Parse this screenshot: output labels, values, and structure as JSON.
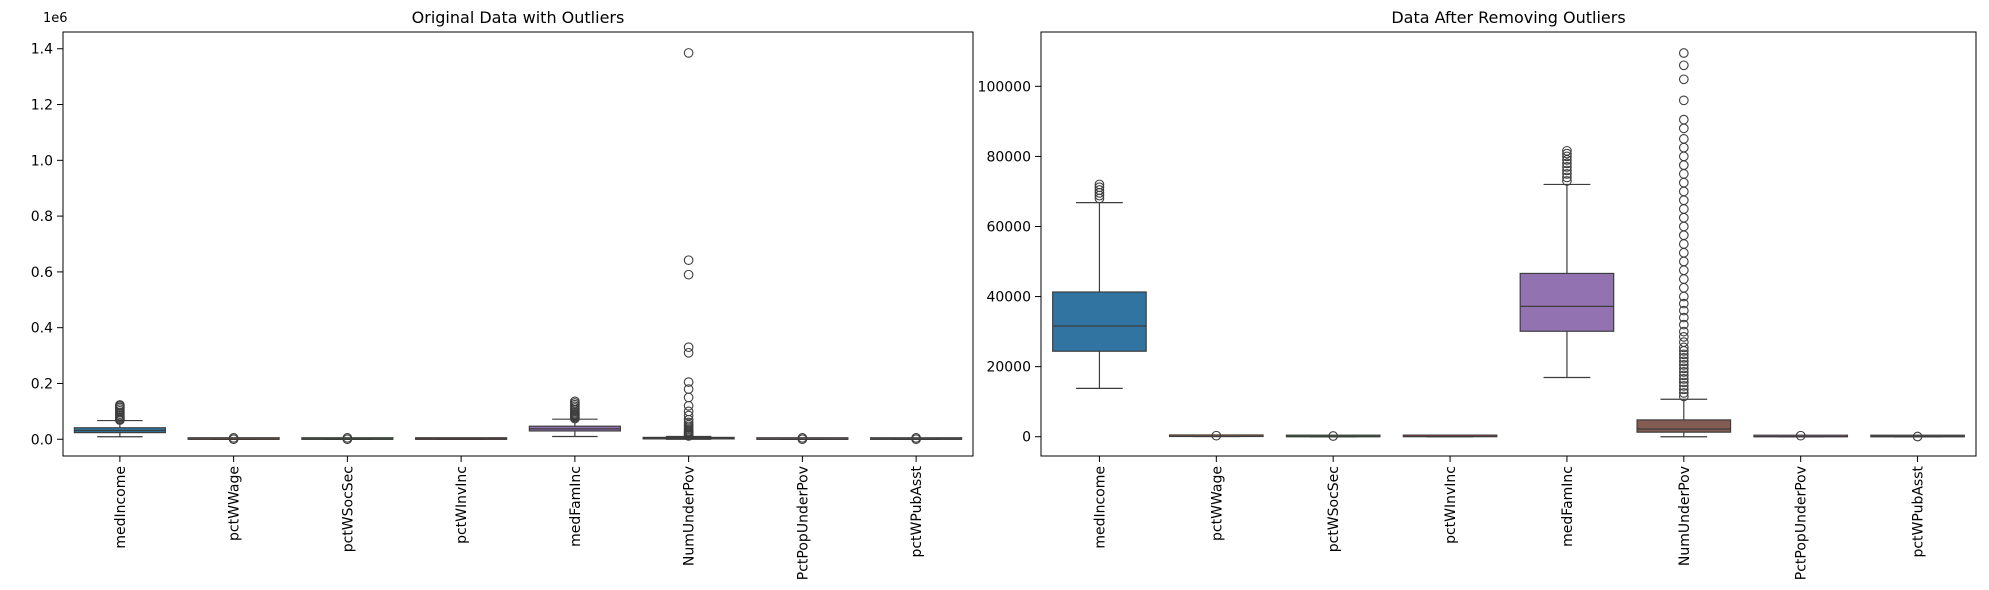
{
  "chart_data": [
    {
      "type": "boxplot",
      "title": "Original Data with Outliers",
      "scale_label": "1e6",
      "ylim": [
        -60000,
        1460000
      ],
      "yticks": [
        0,
        200000,
        400000,
        600000,
        800000,
        1000000,
        1200000,
        1400000
      ],
      "ytick_labels": [
        "0.0",
        "0.2",
        "0.4",
        "0.6",
        "0.8",
        "1.0",
        "1.2",
        "1.4"
      ],
      "categories": [
        "medIncome",
        "pctWWage",
        "pctWSocSec",
        "pctWInvInc",
        "medFamInc",
        "NumUnderPov",
        "PctPopUnderPov",
        "pctWPubAsst"
      ],
      "colors": [
        "#3274a1",
        "#e1812c",
        "#3a923a",
        "#c03d3e",
        "#9372b2",
        "#845b53",
        "#d684bd",
        "#7f7f7f"
      ],
      "boxes": [
        {
          "q1": 23800,
          "median": 31500,
          "q3": 41200,
          "whisker_low": 8900,
          "whisker_high": 67000,
          "outliers": [
            69000,
            72000,
            76000,
            80000,
            85000,
            90000,
            96000,
            102000,
            108000,
            114000,
            119000,
            123000
          ]
        },
        {
          "q1": 70,
          "median": 80,
          "q3": 88,
          "whisker_low": 45,
          "whisker_high": 100,
          "outliers": [
            30,
            5000
          ]
        },
        {
          "q1": 18,
          "median": 24,
          "q3": 32,
          "whisker_low": 0,
          "whisker_high": 52,
          "outliers": [
            60,
            5000
          ]
        },
        {
          "q1": 30,
          "median": 40,
          "q3": 55,
          "whisker_low": 0,
          "whisker_high": 90,
          "outliers": []
        },
        {
          "q1": 29800,
          "median": 37200,
          "q3": 46800,
          "whisker_low": 10000,
          "whisker_high": 72000,
          "outliers": [
            74000,
            78000,
            82000,
            86000,
            90000,
            95000,
            100000,
            106000,
            112000,
            118000,
            124000,
            130000,
            136000
          ]
        },
        {
          "q1": 1300,
          "median": 2200,
          "q3": 4800,
          "whisker_low": 0,
          "whisker_high": 10000,
          "outliers": [
            12000,
            15000,
            18000,
            22000,
            26000,
            30000,
            35000,
            40000,
            46000,
            52000,
            60000,
            70000,
            85000,
            100000,
            120000,
            150000,
            180000,
            205000,
            310000,
            330000,
            590000,
            642000,
            1385000
          ]
        },
        {
          "q1": 5,
          "median": 10,
          "q3": 17,
          "whisker_low": 0,
          "whisker_high": 35,
          "outliers": [
            38,
            5000
          ]
        },
        {
          "q1": 3,
          "median": 5,
          "q3": 9,
          "whisker_low": 0,
          "whisker_high": 18,
          "outliers": [
            20,
            5000
          ]
        }
      ]
    },
    {
      "type": "boxplot",
      "title": "Data After Removing Outliers",
      "ylim": [
        -5500,
        115500
      ],
      "yticks": [
        0,
        20000,
        40000,
        60000,
        80000,
        100000
      ],
      "ytick_labels": [
        "0",
        "20000",
        "40000",
        "60000",
        "80000",
        "100000"
      ],
      "categories": [
        "medIncome",
        "pctWWage",
        "pctWSocSec",
        "pctWInvInc",
        "medFamInc",
        "NumUnderPov",
        "PctPopUnderPov",
        "pctWPubAsst"
      ],
      "colors": [
        "#3274a1",
        "#e1812c",
        "#3a923a",
        "#c03d3e",
        "#9372b2",
        "#845b53",
        "#d684bd",
        "#7f7f7f"
      ],
      "boxes": [
        {
          "q1": 24400,
          "median": 31600,
          "q3": 41300,
          "whisker_low": 13800,
          "whisker_high": 66800,
          "outliers": [
            68000,
            68800,
            69600,
            70400,
            71200,
            72000
          ]
        },
        {
          "q1": 70,
          "median": 80,
          "q3": 88,
          "whisker_low": 45,
          "whisker_high": 100,
          "outliers": [
            300
          ]
        },
        {
          "q1": 18,
          "median": 24,
          "q3": 32,
          "whisker_low": 0,
          "whisker_high": 52,
          "outliers": [
            200
          ]
        },
        {
          "q1": 30,
          "median": 40,
          "q3": 55,
          "whisker_low": 0,
          "whisker_high": 90,
          "outliers": []
        },
        {
          "q1": 30100,
          "median": 37200,
          "q3": 46600,
          "whisker_low": 16900,
          "whisker_high": 72000,
          "outliers": [
            73000,
            74000,
            75000,
            76000,
            77000,
            78000,
            79000,
            80000,
            80800,
            81600
          ]
        },
        {
          "q1": 1300,
          "median": 2200,
          "q3": 4800,
          "whisker_low": 0,
          "whisker_high": 10700,
          "outliers": [
            11500,
            12500,
            13500,
            14500,
            15500,
            16500,
            17500,
            18500,
            19500,
            20500,
            21500,
            22500,
            23500,
            24500,
            25500,
            27000,
            28500,
            30000,
            32000,
            34000,
            36000,
            38000,
            40000,
            42500,
            45000,
            47500,
            50000,
            52500,
            55000,
            57500,
            60000,
            62500,
            65000,
            67500,
            70000,
            72500,
            75000,
            77500,
            80000,
            82500,
            85000,
            88000,
            90500,
            96000,
            102000,
            106000,
            109500
          ]
        },
        {
          "q1": 5,
          "median": 10,
          "q3": 17,
          "whisker_low": 0,
          "whisker_high": 35,
          "outliers": [
            300
          ]
        },
        {
          "q1": 3,
          "median": 5,
          "q3": 9,
          "whisker_low": 0,
          "whisker_high": 18,
          "outliers": [
            60
          ]
        }
      ]
    }
  ]
}
